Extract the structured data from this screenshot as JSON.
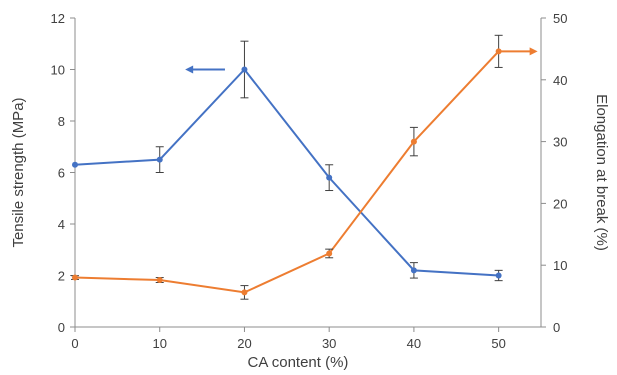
{
  "chart_data": {
    "type": "line",
    "xlabel": "CA content (%)",
    "ylabel": "Tensile strength (MPa)",
    "y2label": "Elongation at break (%)",
    "x_ticks": [
      0,
      10,
      20,
      30,
      40,
      50
    ],
    "xlim": [
      0,
      55
    ],
    "ylim": [
      0,
      12
    ],
    "y_ticks": [
      0,
      2,
      4,
      6,
      8,
      10,
      12
    ],
    "y2lim": [
      0,
      50
    ],
    "y2_ticks": [
      0,
      10,
      20,
      30,
      40,
      50
    ],
    "grid": false,
    "series": [
      {
        "axis": "left",
        "color": "#4472C4",
        "x": [
          0,
          10,
          20,
          30,
          40,
          50
        ],
        "y": [
          6.3,
          6.5,
          10.0,
          5.8,
          2.2,
          2.0
        ],
        "error": [
          0.0,
          0.5,
          1.1,
          0.5,
          0.3,
          0.2
        ],
        "arrow": "left"
      },
      {
        "axis": "right",
        "color": "#ED7D31",
        "x": [
          0,
          10,
          20,
          30,
          40,
          50
        ],
        "y": [
          8.0,
          7.6,
          5.6,
          11.9,
          30.0,
          44.6
        ],
        "error": [
          0.3,
          0.4,
          1.1,
          0.7,
          2.3,
          2.6
        ],
        "arrow": "right"
      }
    ]
  }
}
